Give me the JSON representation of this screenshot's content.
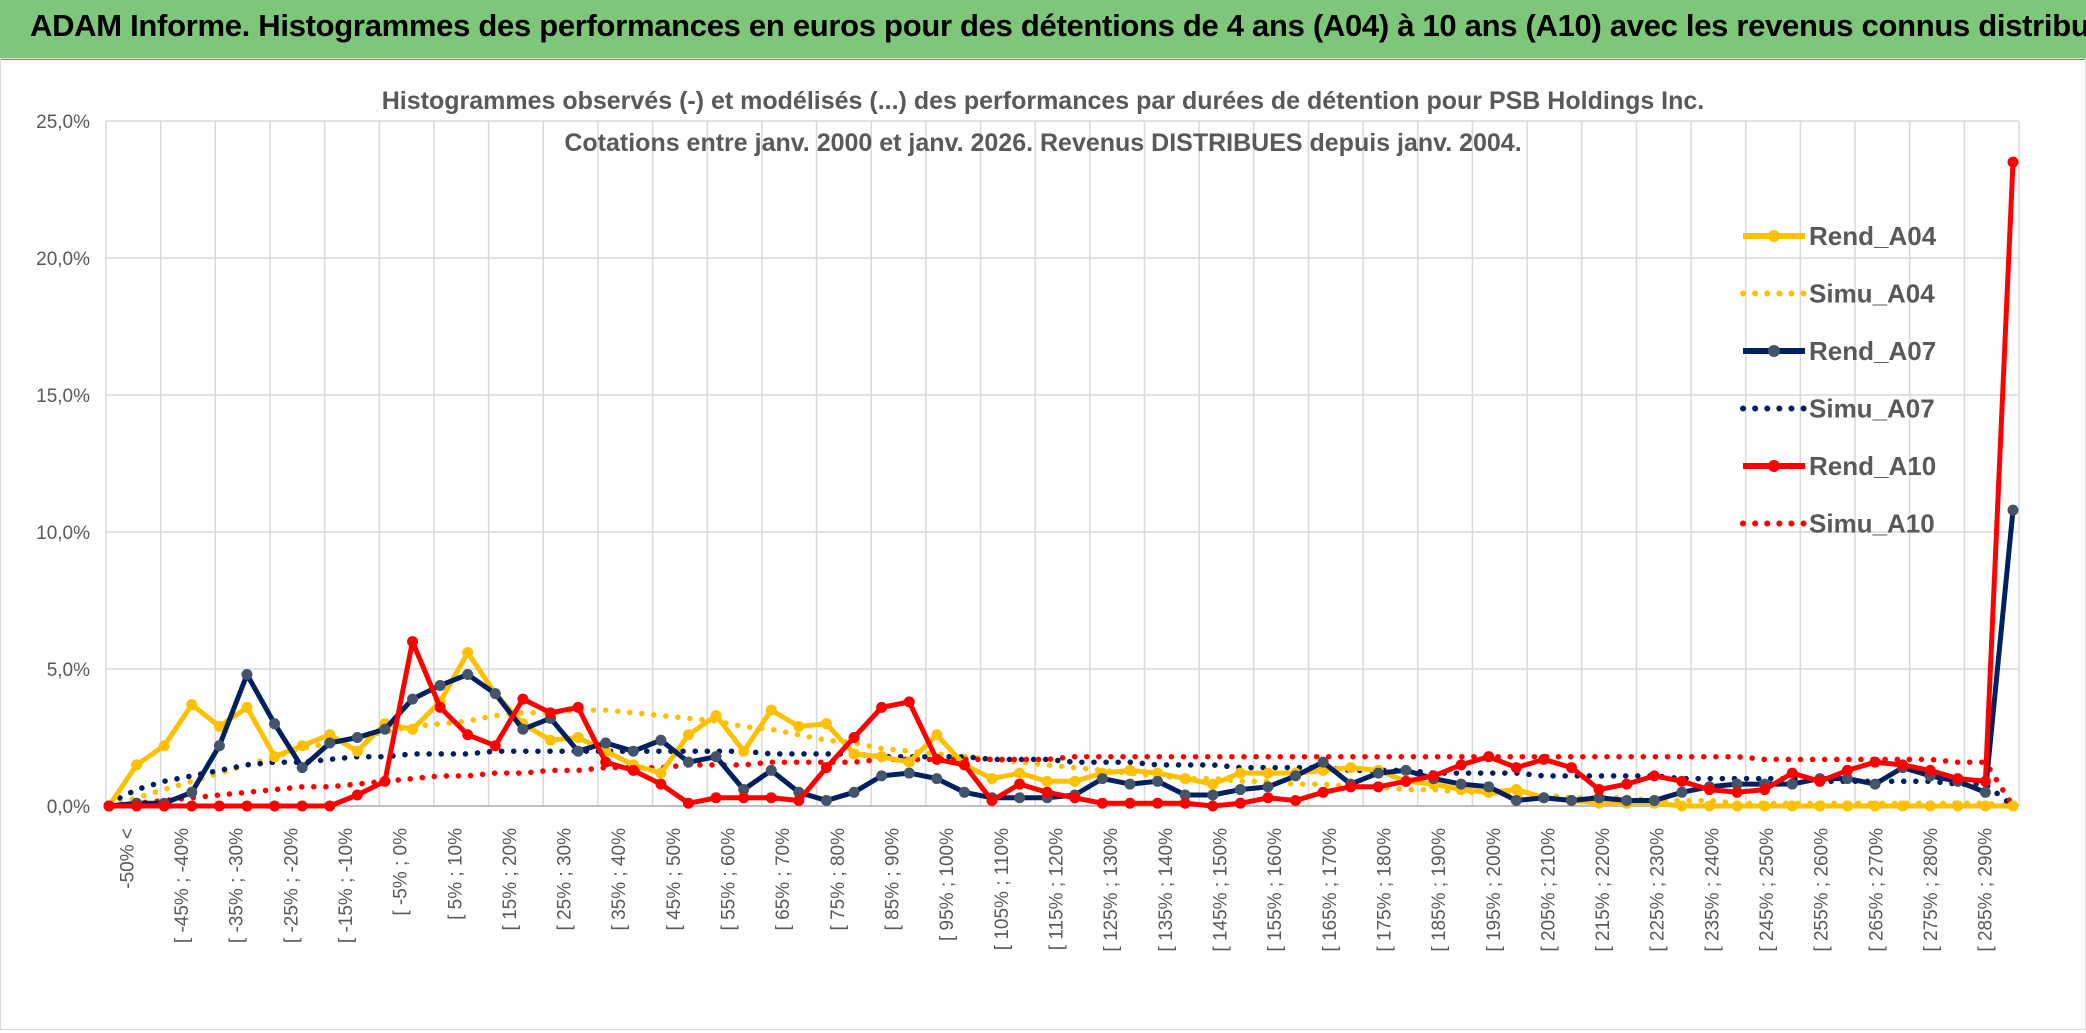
{
  "banner": {
    "title": "ADAM Informe. Histogrammes des performances en euros pour des détentions de 4 ans (A04) à 10 ans (A10) avec les revenus connus distribués"
  },
  "chart_data": {
    "type": "line",
    "title_line1": "Histogrammes observés (-) et modélisés (...) des performances par durées de détention pour PSB Holdings Inc.",
    "title_line2": "Cotations entre janv. 2000 et janv. 2026.  Revenus DISTRIBUES depuis janv. 2004.",
    "ylim": [
      0,
      25
    ],
    "yticks": [
      "0,0%",
      "5,0%",
      "10,0%",
      "15,0%",
      "20,0%",
      "25,0%"
    ],
    "x_labels": [
      "-50% <",
      "[ -45% ; -40%",
      "[ -35% ; -30%",
      "[ -25% ; -20%",
      "[ -15% ; -10%",
      "[ -5% ; 0%",
      "[ 5% ; 10%",
      "[ 15% ; 20%",
      "[ 25% ; 30%",
      "[ 35% ; 40%",
      "[ 45% ; 50%",
      "[ 55% ; 60%",
      "[ 65% ; 70%",
      "[ 75% ; 80%",
      "[ 85% ; 90%",
      "[ 95% ; 100%",
      "[ 105% ; 110%",
      "[ 115% ; 120%",
      "[ 125% ; 130%",
      "[ 135% ; 140%",
      "[ 145% ; 150%",
      "[ 155% ; 160%",
      "[ 165% ; 170%",
      "[ 175% ; 180%",
      "[ 185% ; 190%",
      "[ 195% ; 200%",
      "[ 205% ; 210%",
      "[ 215% ; 220%",
      "[ 225% ; 230%",
      "[ 235% ; 240%",
      "[ 245% ; 250%",
      "[ 255% ; 260%",
      "[ 265% ; 270%",
      "[ 275% ; 280%",
      "[ 285% ; 290%"
    ],
    "series": [
      {
        "name": "Rend_A04",
        "color": "#ffc000",
        "style": "solid",
        "values": [
          0.0,
          1.5,
          2.2,
          3.7,
          2.9,
          3.6,
          1.8,
          2.2,
          2.6,
          2.0,
          3.0,
          2.8,
          3.8,
          5.6,
          4.1,
          3.0,
          2.4,
          2.5,
          2.0,
          1.5,
          1.2,
          2.6,
          3.3,
          2.0,
          3.5,
          2.9,
          3.0,
          1.9,
          1.8,
          1.6,
          2.6,
          1.5,
          1.0,
          1.2,
          0.9,
          0.9,
          1.2,
          1.3,
          1.2,
          1.0,
          0.8,
          1.2,
          1.2,
          1.2,
          1.3,
          1.4,
          1.3,
          0.9,
          0.8,
          0.6,
          0.5,
          0.6,
          0.3,
          0.2,
          0.1,
          0.1,
          0.1,
          0.0,
          0.0,
          0.0,
          0.0,
          0.0,
          0.0,
          0.0,
          0.0,
          0.0,
          0.0,
          0.0,
          0.0,
          0.0
        ]
      },
      {
        "name": "Simu_A04",
        "color": "#ffc000",
        "style": "dotted",
        "values": [
          0.0,
          0.3,
          0.6,
          0.9,
          1.2,
          1.5,
          1.8,
          2.1,
          2.3,
          2.5,
          2.7,
          2.9,
          3.0,
          3.1,
          3.3,
          3.4,
          3.4,
          3.5,
          3.5,
          3.4,
          3.3,
          3.2,
          3.1,
          2.9,
          2.8,
          2.6,
          2.4,
          2.3,
          2.1,
          2.0,
          1.9,
          1.8,
          1.7,
          1.6,
          1.5,
          1.4,
          1.3,
          1.2,
          1.1,
          1.0,
          1.0,
          0.9,
          0.9,
          0.8,
          0.8,
          0.7,
          0.7,
          0.6,
          0.6,
          0.5,
          0.5,
          0.4,
          0.4,
          0.3,
          0.3,
          0.3,
          0.2,
          0.2,
          0.2,
          0.1,
          0.1,
          0.1,
          0.1,
          0.1,
          0.1,
          0.1,
          0.1,
          0.1,
          0.1,
          0.0
        ]
      },
      {
        "name": "Rend_A07",
        "color": "#002060",
        "style": "solid",
        "values": [
          0.0,
          0.1,
          0.1,
          0.5,
          2.2,
          4.8,
          3.0,
          1.4,
          2.3,
          2.5,
          2.8,
          3.9,
          4.4,
          4.8,
          4.1,
          2.8,
          3.2,
          2.0,
          2.3,
          2.0,
          2.4,
          1.6,
          1.8,
          0.6,
          1.3,
          0.5,
          0.2,
          0.5,
          1.1,
          1.2,
          1.0,
          0.5,
          0.3,
          0.3,
          0.3,
          0.4,
          1.0,
          0.8,
          0.9,
          0.4,
          0.4,
          0.6,
          0.7,
          1.1,
          1.6,
          0.8,
          1.2,
          1.3,
          1.0,
          0.8,
          0.7,
          0.2,
          0.3,
          0.2,
          0.3,
          0.2,
          0.2,
          0.5,
          0.7,
          0.8,
          0.8,
          0.8,
          1.0,
          1.0,
          0.8,
          1.4,
          1.1,
          0.9,
          0.5,
          10.8
        ]
      },
      {
        "name": "Simu_A07",
        "color": "#002060",
        "style": "dotted",
        "values": [
          0.1,
          0.6,
          0.9,
          1.1,
          1.3,
          1.5,
          1.6,
          1.6,
          1.7,
          1.8,
          1.8,
          1.9,
          1.9,
          1.9,
          2.0,
          2.0,
          2.0,
          2.0,
          2.0,
          2.0,
          2.0,
          2.0,
          2.0,
          2.0,
          1.9,
          1.9,
          1.9,
          1.9,
          1.8,
          1.8,
          1.8,
          1.8,
          1.7,
          1.7,
          1.7,
          1.6,
          1.6,
          1.6,
          1.5,
          1.5,
          1.5,
          1.4,
          1.4,
          1.4,
          1.4,
          1.3,
          1.3,
          1.3,
          1.2,
          1.2,
          1.2,
          1.2,
          1.1,
          1.1,
          1.1,
          1.1,
          1.1,
          1.0,
          1.0,
          1.0,
          1.0,
          1.0,
          0.9,
          0.9,
          0.9,
          0.9,
          0.9,
          0.8,
          0.8,
          0.0
        ]
      },
      {
        "name": "Rend_A10",
        "color": "#ff0000",
        "style": "solid",
        "values": [
          0.0,
          0.0,
          0.0,
          0.0,
          0.0,
          0.0,
          0.0,
          0.0,
          0.0,
          0.4,
          0.9,
          6.0,
          3.6,
          2.6,
          2.2,
          3.9,
          3.4,
          3.6,
          1.6,
          1.3,
          0.8,
          0.1,
          0.3,
          0.3,
          0.3,
          0.2,
          1.4,
          2.5,
          3.6,
          3.8,
          1.7,
          1.5,
          0.2,
          0.8,
          0.5,
          0.3,
          0.1,
          0.1,
          0.1,
          0.1,
          0.0,
          0.1,
          0.3,
          0.2,
          0.5,
          0.7,
          0.7,
          0.9,
          1.1,
          1.5,
          1.8,
          1.4,
          1.7,
          1.4,
          0.6,
          0.8,
          1.1,
          0.9,
          0.6,
          0.5,
          0.6,
          1.2,
          0.9,
          1.3,
          1.6,
          1.5,
          1.3,
          1.0,
          0.9,
          23.5
        ]
      },
      {
        "name": "Simu_A10",
        "color": "#ff0000",
        "style": "dotted",
        "values": [
          0.0,
          0.1,
          0.2,
          0.3,
          0.4,
          0.5,
          0.6,
          0.7,
          0.7,
          0.8,
          0.9,
          1.0,
          1.1,
          1.1,
          1.2,
          1.2,
          1.3,
          1.3,
          1.4,
          1.4,
          1.4,
          1.5,
          1.5,
          1.5,
          1.6,
          1.6,
          1.6,
          1.6,
          1.7,
          1.7,
          1.7,
          1.7,
          1.7,
          1.7,
          1.7,
          1.8,
          1.8,
          1.8,
          1.8,
          1.8,
          1.8,
          1.8,
          1.8,
          1.8,
          1.8,
          1.8,
          1.8,
          1.8,
          1.8,
          1.8,
          1.8,
          1.8,
          1.8,
          1.8,
          1.8,
          1.8,
          1.8,
          1.8,
          1.8,
          1.8,
          1.7,
          1.7,
          1.7,
          1.7,
          1.7,
          1.7,
          1.7,
          1.6,
          1.6,
          0.0
        ]
      }
    ],
    "legend_position": "right"
  }
}
